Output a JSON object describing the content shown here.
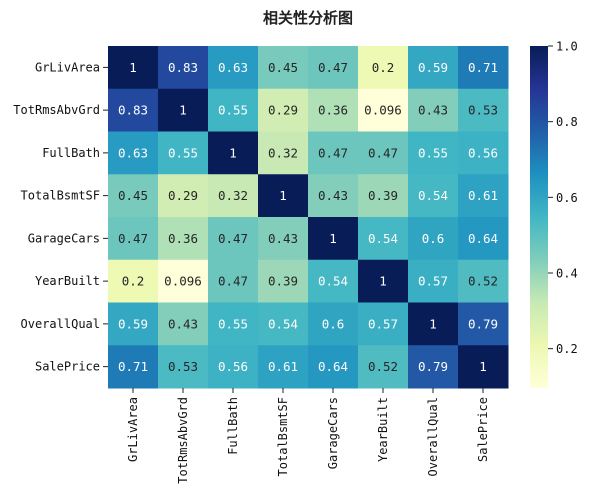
{
  "chart_data": {
    "type": "heatmap",
    "title": "相关性分析图",
    "rows": [
      "GrLivArea",
      "TotRmsAbvGrd",
      "FullBath",
      "TotalBsmtSF",
      "GarageCars",
      "YearBuilt",
      "OverallQual",
      "SalePrice"
    ],
    "columns": [
      "GrLivArea",
      "TotRmsAbvGrd",
      "FullBath",
      "TotalBsmtSF",
      "GarageCars",
      "YearBuilt",
      "OverallQual",
      "SalePrice"
    ],
    "values": [
      [
        1,
        0.83,
        0.63,
        0.45,
        0.47,
        0.2,
        0.59,
        0.71
      ],
      [
        0.83,
        1,
        0.55,
        0.29,
        0.36,
        0.096,
        0.43,
        0.53
      ],
      [
        0.63,
        0.55,
        1,
        0.32,
        0.47,
        0.47,
        0.55,
        0.56
      ],
      [
        0.45,
        0.29,
        0.32,
        1,
        0.43,
        0.39,
        0.54,
        0.61
      ],
      [
        0.47,
        0.36,
        0.47,
        0.43,
        1,
        0.54,
        0.6,
        0.64
      ],
      [
        0.2,
        0.096,
        0.47,
        0.39,
        0.54,
        1,
        0.57,
        0.52
      ],
      [
        0.59,
        0.43,
        0.55,
        0.54,
        0.6,
        0.57,
        1,
        0.79
      ],
      [
        0.71,
        0.53,
        0.56,
        0.61,
        0.64,
        0.52,
        0.79,
        1
      ]
    ],
    "annotations": true,
    "colormap": "YlGnBu",
    "colormap_stops": [
      "#ffffd9",
      "#edf8b1",
      "#c7e9b4",
      "#7fcdbb",
      "#41b6c4",
      "#1d91c0",
      "#225ea8",
      "#253494",
      "#081d58"
    ],
    "color_range": [
      0.096,
      1.0
    ],
    "colorbar": {
      "ticks": [
        0.2,
        0.4,
        0.6,
        0.8,
        1.0
      ],
      "tick_labels": [
        "0.2",
        "0.4",
        "0.6",
        "0.8",
        "1.0"
      ],
      "placement": "right"
    }
  }
}
